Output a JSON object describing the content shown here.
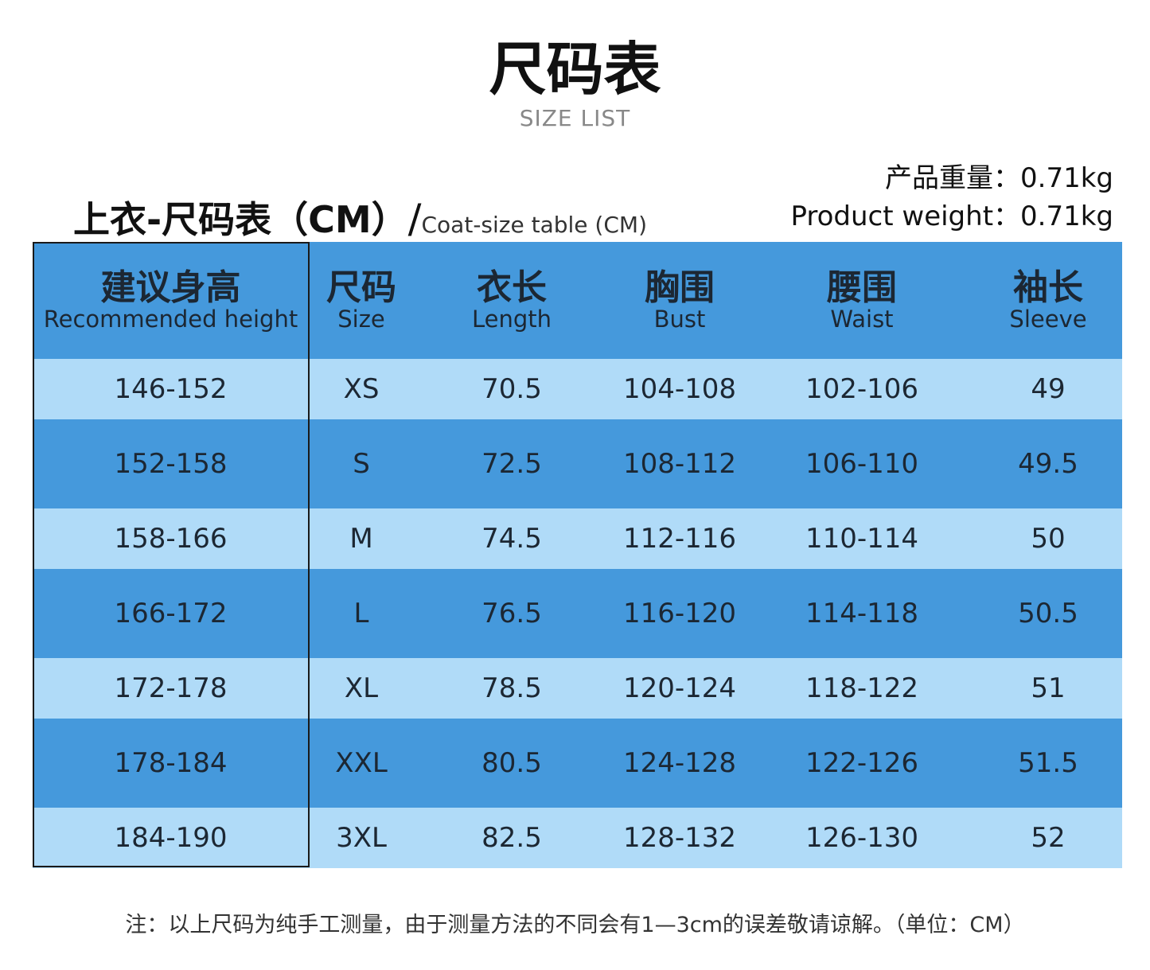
{
  "title": "尺码表",
  "subtitle": "SIZE LIST",
  "table_title": {
    "zh": "上衣-尺码表（CM）",
    "slash": "/",
    "en": "Coat-size table (CM)"
  },
  "weight": {
    "zh": "产品重量：0.71kg",
    "en": "Product weight：0.71kg"
  },
  "headers": [
    {
      "zh": "建议身高",
      "en": "Recommended height"
    },
    {
      "zh": "尺码",
      "en": "Size"
    },
    {
      "zh": "衣长",
      "en": "Length"
    },
    {
      "zh": "胸围",
      "en": "Bust"
    },
    {
      "zh": "腰围",
      "en": "Waist"
    },
    {
      "zh": "袖长",
      "en": "Sleeve"
    }
  ],
  "rows": [
    [
      "146-152",
      "XS",
      "70.5",
      "104-108",
      "102-106",
      "49"
    ],
    [
      "152-158",
      "S",
      "72.5",
      "108-112",
      "106-110",
      "49.5"
    ],
    [
      "158-166",
      "M",
      "74.5",
      "112-116",
      "110-114",
      "50"
    ],
    [
      "166-172",
      "L",
      "76.5",
      "116-120",
      "114-118",
      "50.5"
    ],
    [
      "172-178",
      "XL",
      "78.5",
      "120-124",
      "118-122",
      "51"
    ],
    [
      "178-184",
      "XXL",
      "80.5",
      "124-128",
      "122-126",
      "51.5"
    ],
    [
      "184-190",
      "3XL",
      "82.5",
      "128-132",
      "126-130",
      "52"
    ]
  ],
  "note": "注：以上尺码为纯手工测量，由于测量方法的不同会有1—3cm的误差敬请谅解。（单位：CM）",
  "colors": {
    "header": "#4599dc",
    "row_dark": "#4599dc",
    "row_light": "#b0dbf8"
  }
}
